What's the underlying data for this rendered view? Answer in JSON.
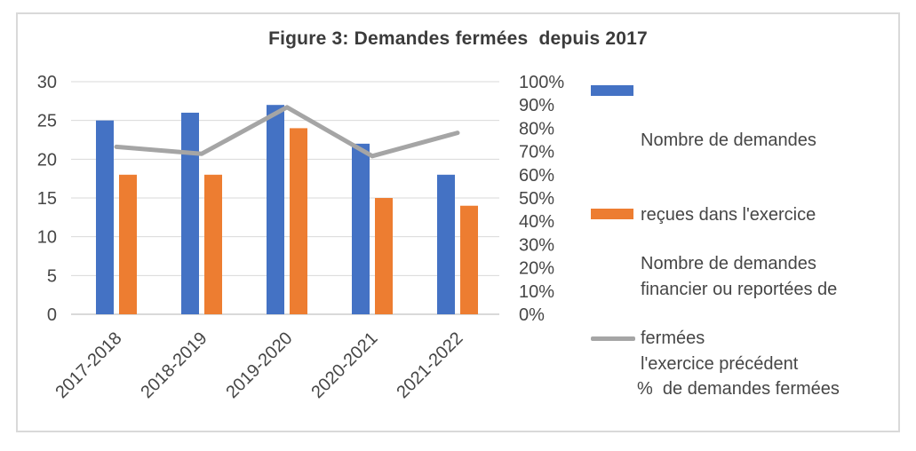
{
  "figure": {
    "title": "Figure 3: Demandes fermées  depuis 2017"
  },
  "colors": {
    "bar_blue": "#4472C4",
    "bar_orange": "#ED7D31",
    "line_gray": "#A5A5A5",
    "gridline": "#D9D9D9",
    "frame_border": "#D9D9D9",
    "axis_text": "#464646",
    "title_text": "#3B3B3B"
  },
  "legend": {
    "items": [
      {
        "swatch": "blue-bar-swatch",
        "color": "#4472C4",
        "lines": [
          "Nombre de demandes",
          "reçues dans l'exercice",
          "financier ou reportées de",
          "l'exercice précédent"
        ]
      },
      {
        "swatch": "orange-bar-swatch",
        "color": "#ED7D31",
        "lines": [
          "Nombre de demandes",
          "fermées"
        ]
      },
      {
        "swatch": "gray-line-swatch",
        "color": "#A5A5A5",
        "lines": [
          "%  de demandes fermées"
        ]
      }
    ]
  },
  "chart_data": {
    "type": "bar",
    "title": "Figure 3: Demandes fermées depuis 2017",
    "categories": [
      "2017-2018",
      "2018-2019",
      "2019-2020",
      "2020-2021",
      "2021-2022"
    ],
    "series": [
      {
        "name": "Nombre de demandes reçues dans l'exercice financier ou reportées de l'exercice précédent",
        "type": "bar",
        "axis": "left",
        "color": "#4472C4",
        "values": [
          25,
          26,
          27,
          22,
          18
        ]
      },
      {
        "name": "Nombre de demandes fermées",
        "type": "bar",
        "axis": "left",
        "color": "#ED7D31",
        "values": [
          18,
          18,
          24,
          15,
          14
        ]
      },
      {
        "name": "% de demandes fermées",
        "type": "line",
        "axis": "right",
        "color": "#A5A5A5",
        "values": [
          72,
          69,
          89,
          68,
          78
        ]
      }
    ],
    "left_axis": {
      "min": 0,
      "max": 30,
      "step": 5,
      "ticks": [
        "0",
        "5",
        "10",
        "15",
        "20",
        "25",
        "30"
      ]
    },
    "right_axis": {
      "min": 0,
      "max": 100,
      "step": 10,
      "ticks": [
        "0%",
        "10%",
        "20%",
        "30%",
        "40%",
        "50%",
        "60%",
        "70%",
        "80%",
        "90%",
        "100%"
      ]
    },
    "grid": true,
    "legend_position": "right"
  }
}
